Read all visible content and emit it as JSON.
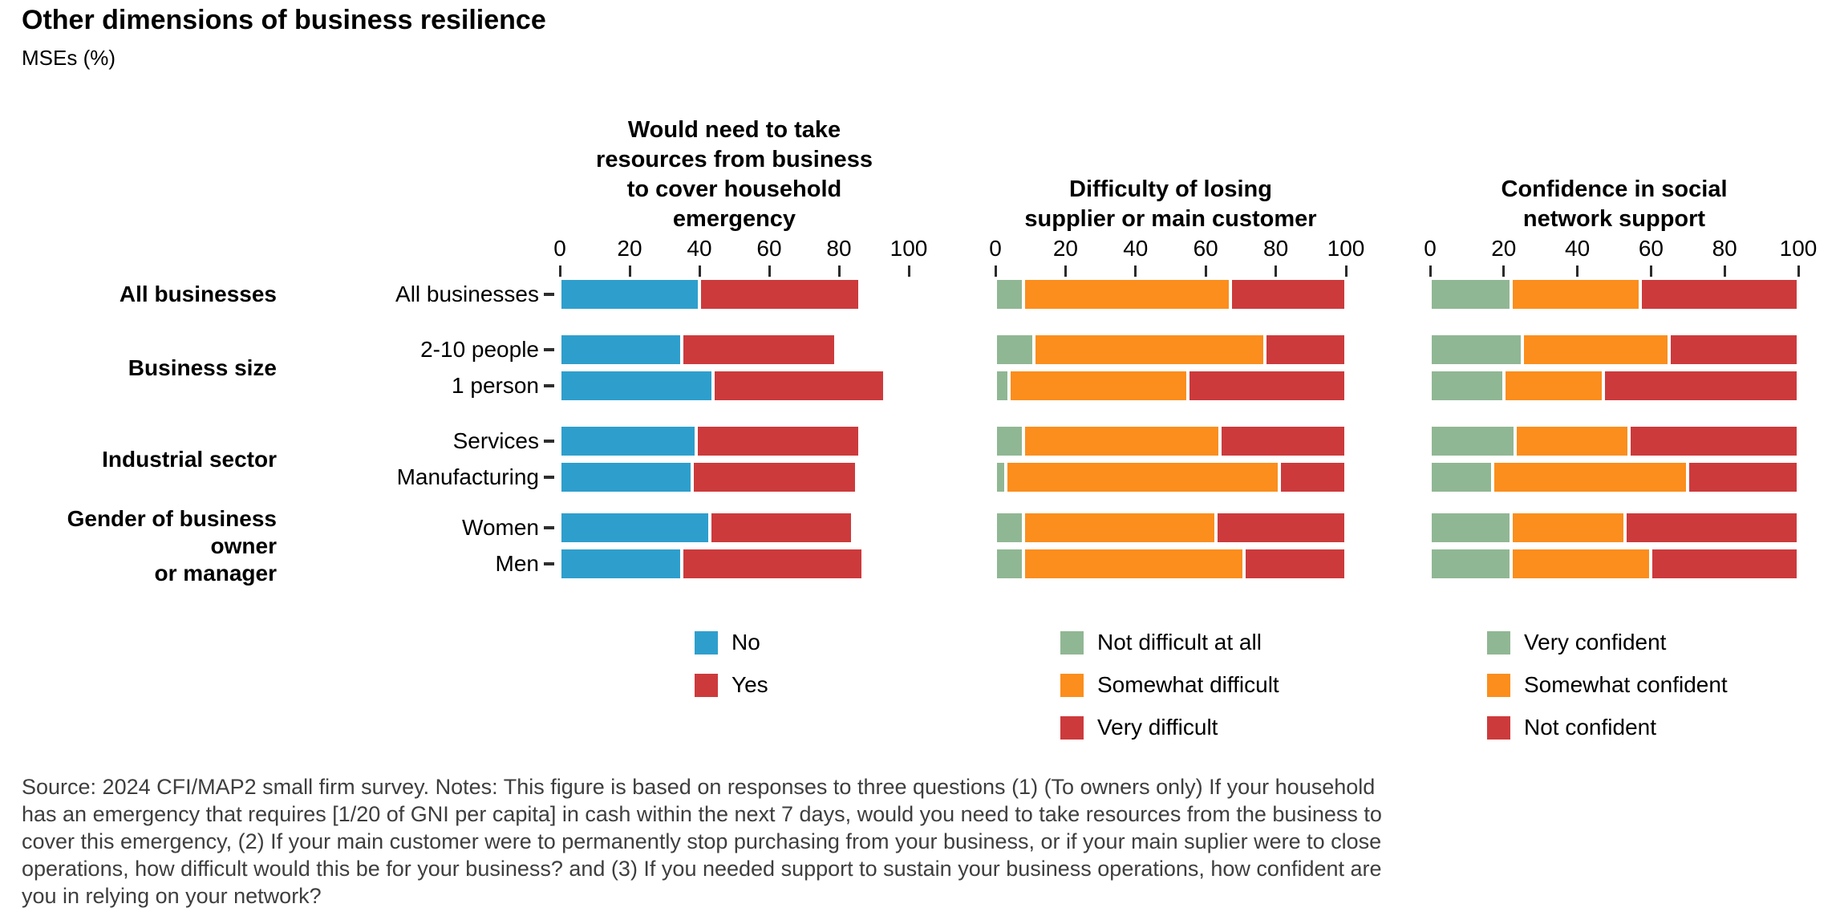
{
  "header": {
    "title": "Other dimensions of business resilience",
    "subtitle": "MSEs (%)"
  },
  "colors": {
    "blue": "#2E9FCD",
    "red": "#CD3A3C",
    "orange": "#FB8E1D",
    "green": "#90B793",
    "axis_tick": "#2b2b2b",
    "note_text": "#3e3e3e"
  },
  "row_groups": [
    {
      "label": "All businesses",
      "rows": [
        "All businesses"
      ]
    },
    {
      "label": "Business size",
      "rows": [
        "2-10 people",
        "1 person"
      ]
    },
    {
      "label": "Industrial sector",
      "rows": [
        "Services",
        "Manufacturing"
      ]
    },
    {
      "label": "Gender of business owner\nor manager",
      "rows": [
        "Women",
        "Men"
      ]
    }
  ],
  "chart_data": [
    {
      "type": "bar",
      "orientation": "horizontal",
      "stacked": true,
      "title": "Would need to take resources from business to cover household emergency",
      "title_lines": [
        "Would need to take",
        "resources from business",
        "to cover household",
        "emergency"
      ],
      "categories": [
        "All businesses",
        "2-10 people",
        "1 person",
        "Services",
        "Manufacturing",
        "Women",
        "Men"
      ],
      "series": [
        {
          "name": "No",
          "color": "#2E9FCD",
          "values": [
            40,
            35,
            44,
            39,
            38,
            43,
            35
          ]
        },
        {
          "name": "Yes",
          "color": "#CD3A3C",
          "values": [
            46,
            44,
            49,
            47,
            47,
            41,
            52
          ]
        }
      ],
      "xlim": [
        0,
        100
      ],
      "xticks": [
        0,
        20,
        40,
        60,
        80,
        100
      ],
      "grid": false,
      "legend_position": "bottom"
    },
    {
      "type": "bar",
      "orientation": "horizontal",
      "stacked": true,
      "title": "Difficulty of losing supplier or main customer",
      "title_lines": [
        "Difficulty of losing",
        "supplier or main customer"
      ],
      "categories": [
        "All businesses",
        "2-10 people",
        "1 person",
        "Services",
        "Manufacturing",
        "Women",
        "Men"
      ],
      "series": [
        {
          "name": "Not difficult at all",
          "color": "#90B793",
          "values": [
            8,
            11,
            4,
            8,
            3,
            8,
            8
          ]
        },
        {
          "name": "Somewhat difficult",
          "color": "#FB8E1D",
          "values": [
            59,
            66,
            51,
            56,
            78,
            55,
            63
          ]
        },
        {
          "name": "Very difficult",
          "color": "#CD3A3C",
          "values": [
            33,
            23,
            45,
            36,
            19,
            37,
            29
          ]
        }
      ],
      "xlim": [
        0,
        100
      ],
      "xticks": [
        0,
        20,
        40,
        60,
        80,
        100
      ],
      "grid": false,
      "legend_position": "bottom"
    },
    {
      "type": "bar",
      "orientation": "horizontal",
      "stacked": true,
      "title": "Confidence in social network support",
      "title_lines": [
        "Confidence in social",
        "network support"
      ],
      "categories": [
        "All businesses",
        "2-10 people",
        "1 person",
        "Services",
        "Manufacturing",
        "Women",
        "Men"
      ],
      "series": [
        {
          "name": "Very confident",
          "color": "#90B793",
          "values": [
            22,
            25,
            20,
            23,
            17,
            22,
            22
          ]
        },
        {
          "name": "Somewhat confident",
          "color": "#FB8E1D",
          "values": [
            35,
            40,
            27,
            31,
            53,
            31,
            38
          ]
        },
        {
          "name": "Not confident",
          "color": "#CD3A3C",
          "values": [
            43,
            35,
            53,
            46,
            30,
            47,
            40
          ]
        }
      ],
      "xlim": [
        0,
        100
      ],
      "xticks": [
        0,
        20,
        40,
        60,
        80,
        100
      ],
      "grid": false,
      "legend_position": "bottom"
    }
  ],
  "source_note": "Source: 2024 CFI/MAP2 small firm survey. Notes: This figure is based on responses to three questions (1) (To owners only) If your household\nhas an emergency that requires [1/20 of GNI per capita] in cash within the next 7 days, would you need to take resources from the business to\ncover this emergency, (2) If your main customer were to permanently stop purchasing from your business, or if your main suplier were to close\noperations, how difficult would this be for your business? and (3) If you needed support to sustain your business operations, how confident are\nyou in relying on your network?"
}
